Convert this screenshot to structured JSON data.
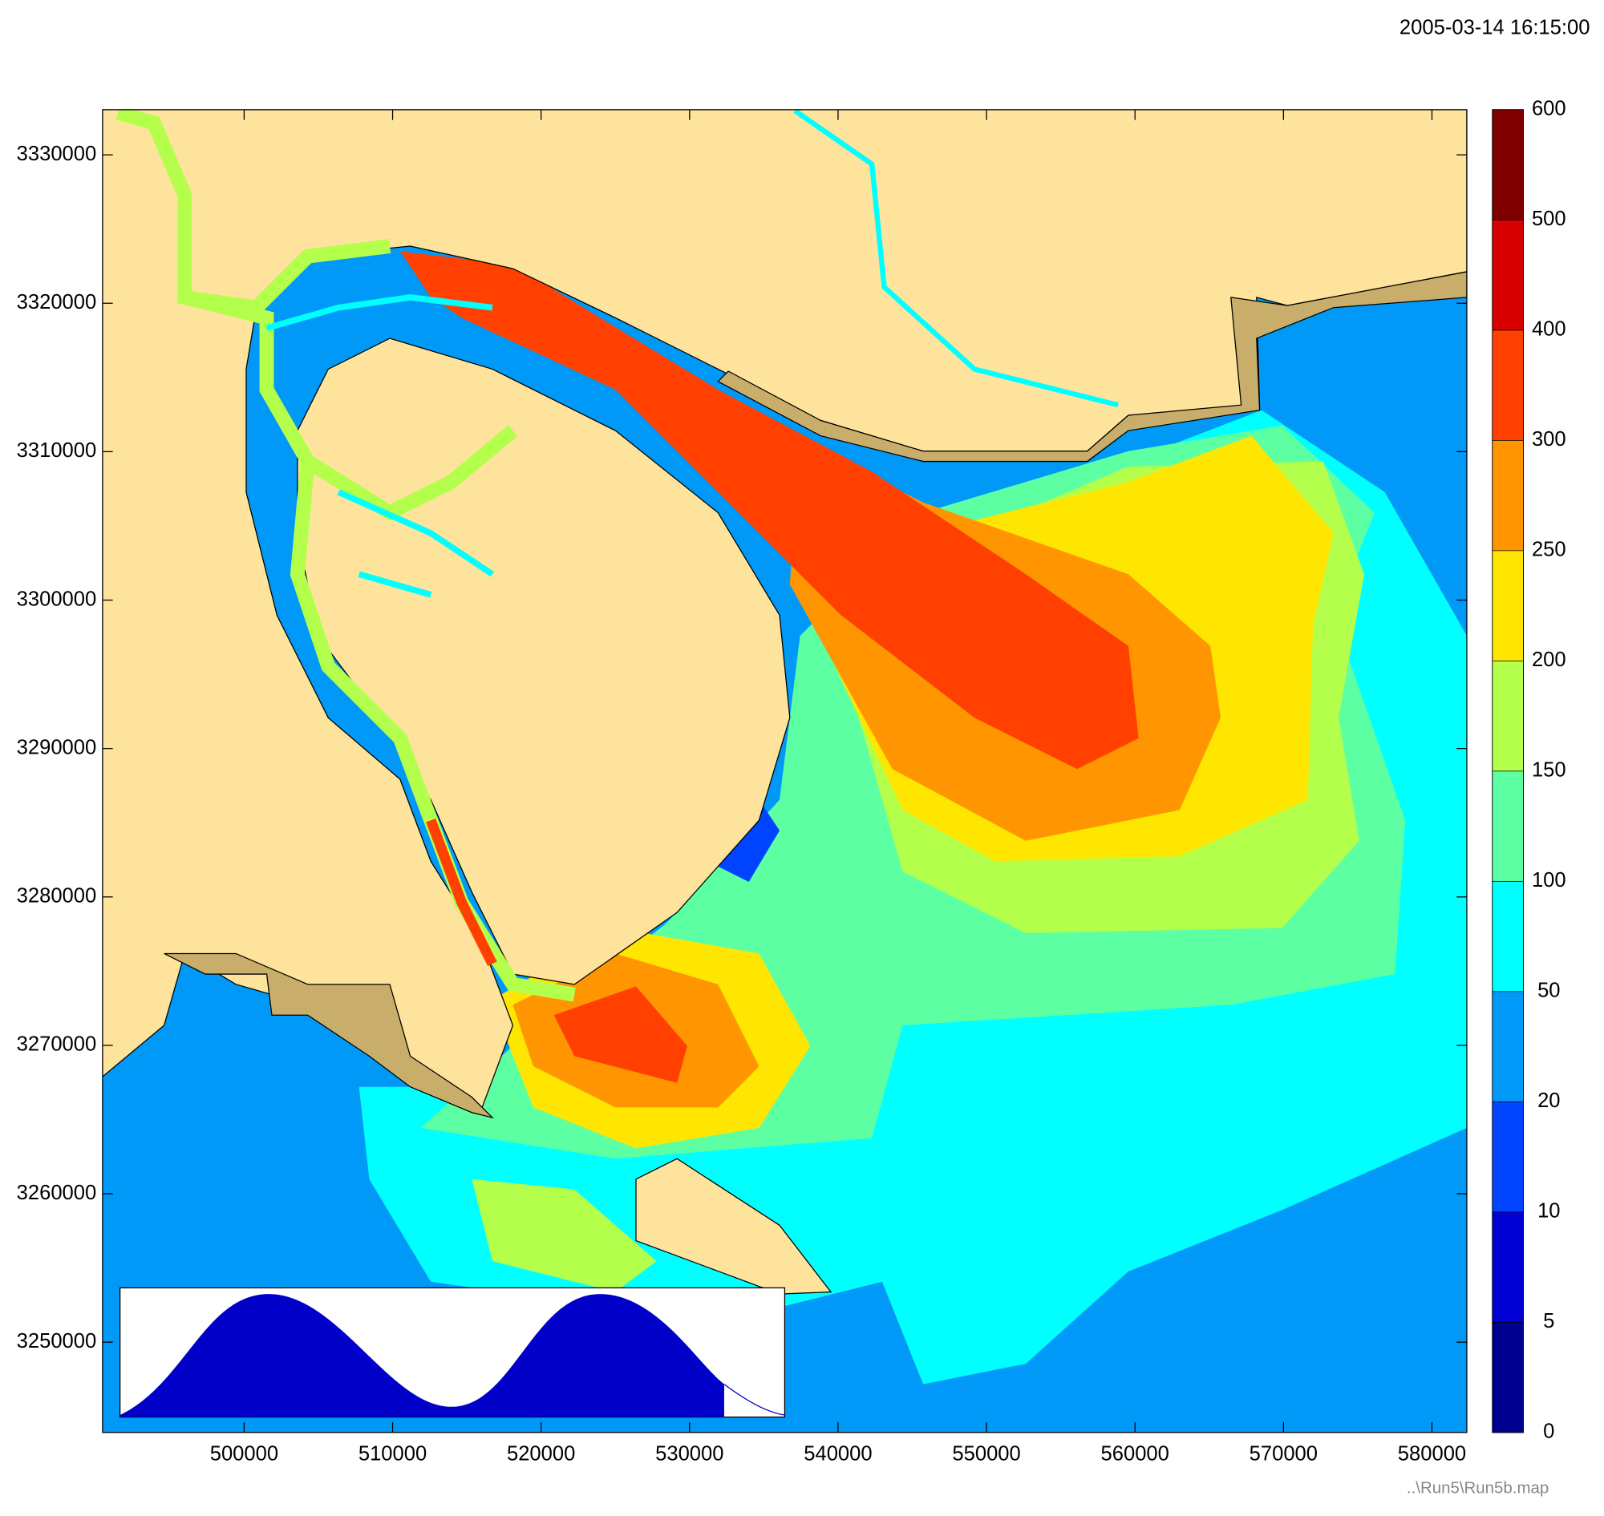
{
  "timestamp": "2005-03-14 16:15:00",
  "map": {
    "xlim": [
      490466,
      582349
    ],
    "ylim": [
      3243920,
      3333040
    ],
    "xticks": [
      500000,
      510000,
      520000,
      530000,
      540000,
      550000,
      560000,
      570000,
      580000
    ],
    "yticks": [
      3250000,
      3260000,
      3270000,
      3280000,
      3290000,
      3300000,
      3310000,
      3320000,
      3330000
    ]
  },
  "colorbar": {
    "levels": [
      0,
      5,
      10,
      20,
      50,
      100,
      150,
      200,
      250,
      300,
      400,
      500,
      600
    ],
    "colors": [
      "#00008f",
      "#0000d2",
      "#0044ff",
      "#0099f7",
      "#00ffff",
      "#5cffa2",
      "#b4ff4c",
      "#ffe600",
      "#ff9500",
      "#ff4000",
      "#d80000",
      "#800000"
    ]
  },
  "footer": "..\\Run5\\Run5b.map"
}
